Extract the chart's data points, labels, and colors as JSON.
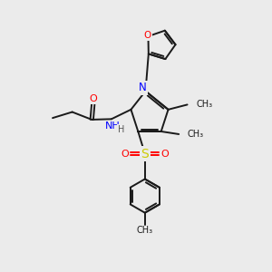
{
  "background_color": "#ebebeb",
  "bond_color": "#1a1a1a",
  "N_color": "#0000ff",
  "O_color": "#ff0000",
  "S_color": "#cccc00",
  "H_color": "#555555",
  "figsize": [
    3.0,
    3.0
  ],
  "dpi": 100,
  "xlim": [
    0,
    10
  ],
  "ylim": [
    0,
    10
  ]
}
